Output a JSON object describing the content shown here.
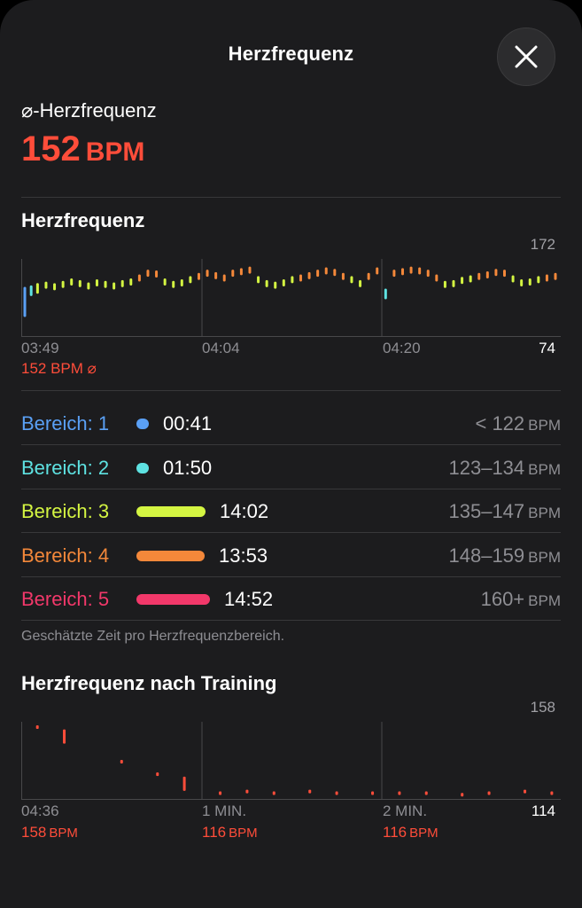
{
  "header": {
    "title": "Herzfrequenz"
  },
  "average": {
    "label": "⌀-Herzfrequenz",
    "value": "152",
    "unit": "BPM"
  },
  "hr_section": {
    "title": "Herzfrequenz",
    "y_max": "172",
    "y_min": "74",
    "x_ticks": [
      "03:49",
      "04:04",
      "04:20"
    ],
    "avg_caption": "152 BPM ⌀"
  },
  "zones": [
    {
      "label": "Bereich: 1",
      "time": "00:41",
      "range": "< 122",
      "unit": "BPM",
      "color": "#5aa0f5",
      "fraction": 0.017
    },
    {
      "label": "Bereich: 2",
      "time": "01:50",
      "range": "123–134",
      "unit": "BPM",
      "color": "#5ee2e2",
      "fraction": 0.068
    },
    {
      "label": "Bereich: 3",
      "time": "14:02",
      "range": "135–147",
      "unit": "BPM",
      "color": "#d4f542",
      "fraction": 0.94
    },
    {
      "label": "Bereich: 4",
      "time": "13:53",
      "range": "148–159",
      "unit": "BPM",
      "color": "#f4883a",
      "fraction": 0.93
    },
    {
      "label": "Bereich: 5",
      "time": "14:52",
      "range": "160+",
      "unit": "BPM",
      "color": "#f2386a",
      "fraction": 1.0
    }
  ],
  "zones_footnote": "Geschätzte Zeit pro Herzfrequenzbereich.",
  "recovery_section": {
    "title": "Herzfrequenz nach Training",
    "y_max": "158",
    "y_min": "114",
    "x_ticks": [
      "04:36",
      "1 MIN.",
      "2 MIN."
    ],
    "captions": [
      {
        "value": "158",
        "unit": "BPM"
      },
      {
        "value": "116",
        "unit": "BPM"
      },
      {
        "value": "116",
        "unit": "BPM"
      }
    ]
  },
  "colors": {
    "accent": "#ff4d3a",
    "background": "#1c1c1e"
  },
  "chart_data": [
    {
      "type": "scatter",
      "title": "Herzfrequenz",
      "xlabel": "",
      "ylabel": "",
      "x_ticks": [
        "03:49",
        "04:04",
        "04:20"
      ],
      "ylim": [
        74,
        172
      ],
      "grid": true,
      "series": [
        {
          "x": [
            0.0,
            0.012,
            0.024,
            0.04,
            0.056,
            0.072,
            0.088,
            0.104,
            0.12,
            0.136,
            0.152,
            0.168,
            0.184,
            0.2,
            0.216,
            0.232,
            0.248,
            0.264,
            0.28,
            0.296,
            0.312,
            0.328,
            0.344,
            0.36,
            0.376,
            0.392,
            0.408,
            0.424,
            0.44,
            0.456,
            0.472,
            0.488,
            0.504,
            0.52,
            0.536,
            0.552,
            0.568,
            0.584,
            0.6,
            0.616,
            0.632,
            0.648,
            0.664,
            0.68,
            0.696,
            0.712,
            0.728,
            0.744,
            0.76,
            0.776,
            0.792,
            0.808,
            0.824,
            0.84,
            0.856,
            0.872,
            0.888,
            0.904,
            0.92,
            0.936,
            0.952,
            0.968,
            0.984,
            1.0
          ],
          "values": [
            118,
            132,
            135,
            139,
            137,
            140,
            143,
            141,
            138,
            142,
            140,
            138,
            141,
            143,
            148,
            154,
            153,
            143,
            140,
            142,
            146,
            150,
            154,
            151,
            148,
            154,
            156,
            158,
            146,
            141,
            139,
            142,
            146,
            148,
            151,
            154,
            157,
            155,
            150,
            146,
            141,
            150,
            157,
            128,
            154,
            156,
            158,
            157,
            154,
            148,
            140,
            141,
            145,
            147,
            150,
            152,
            155,
            154,
            147,
            142,
            143,
            146,
            148,
            150
          ]
        }
      ]
    },
    {
      "type": "scatter",
      "title": "Herzfrequenz nach Training",
      "xlabel": "",
      "ylabel": "",
      "x_ticks": [
        "04:36",
        "1 MIN.",
        "2 MIN."
      ],
      "ylim": [
        114,
        158
      ],
      "grid": true,
      "series": [
        {
          "x": [
            0.08,
            0.23,
            0.55,
            0.75,
            0.9,
            1.1,
            1.25,
            1.4,
            1.6,
            1.75,
            1.95,
            2.1,
            2.25,
            2.45,
            2.6,
            2.8,
            2.95
          ],
          "values": [
            158,
            152,
            136,
            128,
            122,
            116,
            117,
            116,
            117,
            116,
            116,
            116,
            116,
            115,
            116,
            117,
            116
          ]
        }
      ]
    }
  ]
}
